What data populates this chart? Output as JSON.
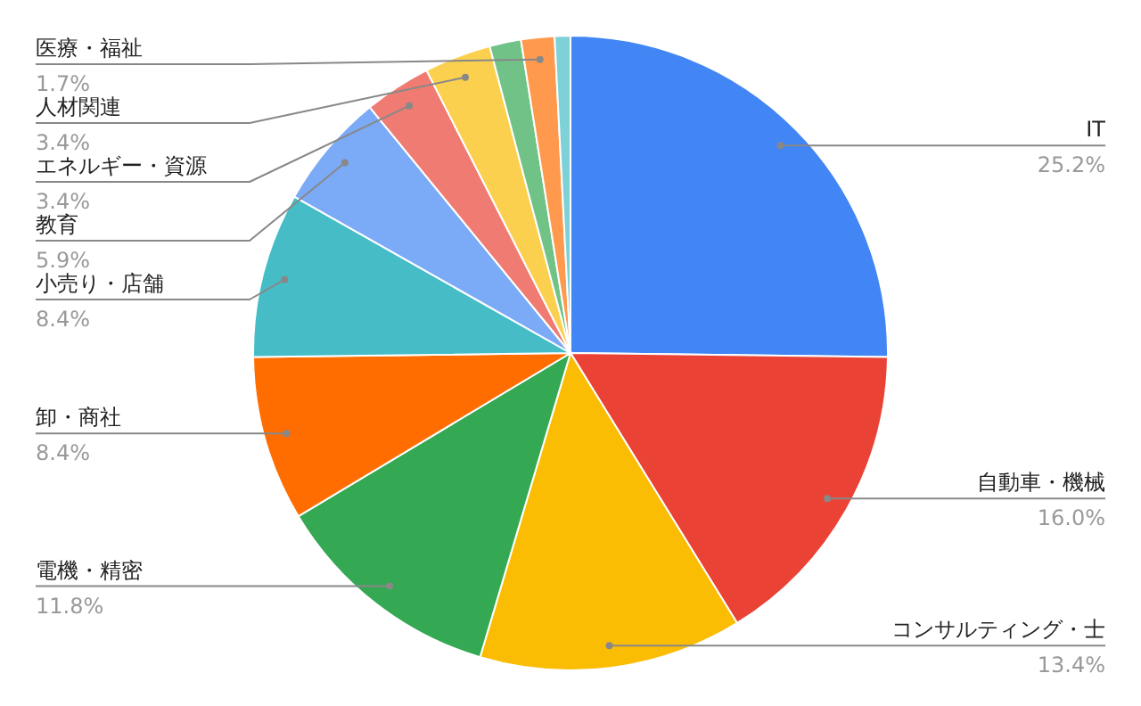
{
  "chart_data": {
    "type": "pie",
    "categories": [
      "IT",
      "自動車・機械",
      "コンサルティング・士",
      "電機・精密",
      "卸・商社",
      "小売り・店舗",
      "教育",
      "エネルギー・資源",
      "人材関連",
      null,
      "医療・福祉",
      null
    ],
    "values": [
      25.2,
      16.0,
      13.4,
      11.8,
      8.4,
      8.4,
      5.9,
      3.4,
      3.4,
      1.6,
      1.7,
      0.8
    ],
    "value_labels": [
      "25.2%",
      "16.0%",
      "13.4%",
      "11.8%",
      "8.4%",
      "8.4%",
      "5.9%",
      "3.4%",
      "3.4%",
      null,
      "1.7%",
      null
    ],
    "colors": [
      "#4285f4",
      "#ea4335",
      "#fbbc04",
      "#34a853",
      "#ff6d01",
      "#46bdc6",
      "#7baaf7",
      "#f07b72",
      "#fcd04f",
      "#71c287",
      "#ff994d",
      "#7ed1d7"
    ],
    "legend": false
  }
}
